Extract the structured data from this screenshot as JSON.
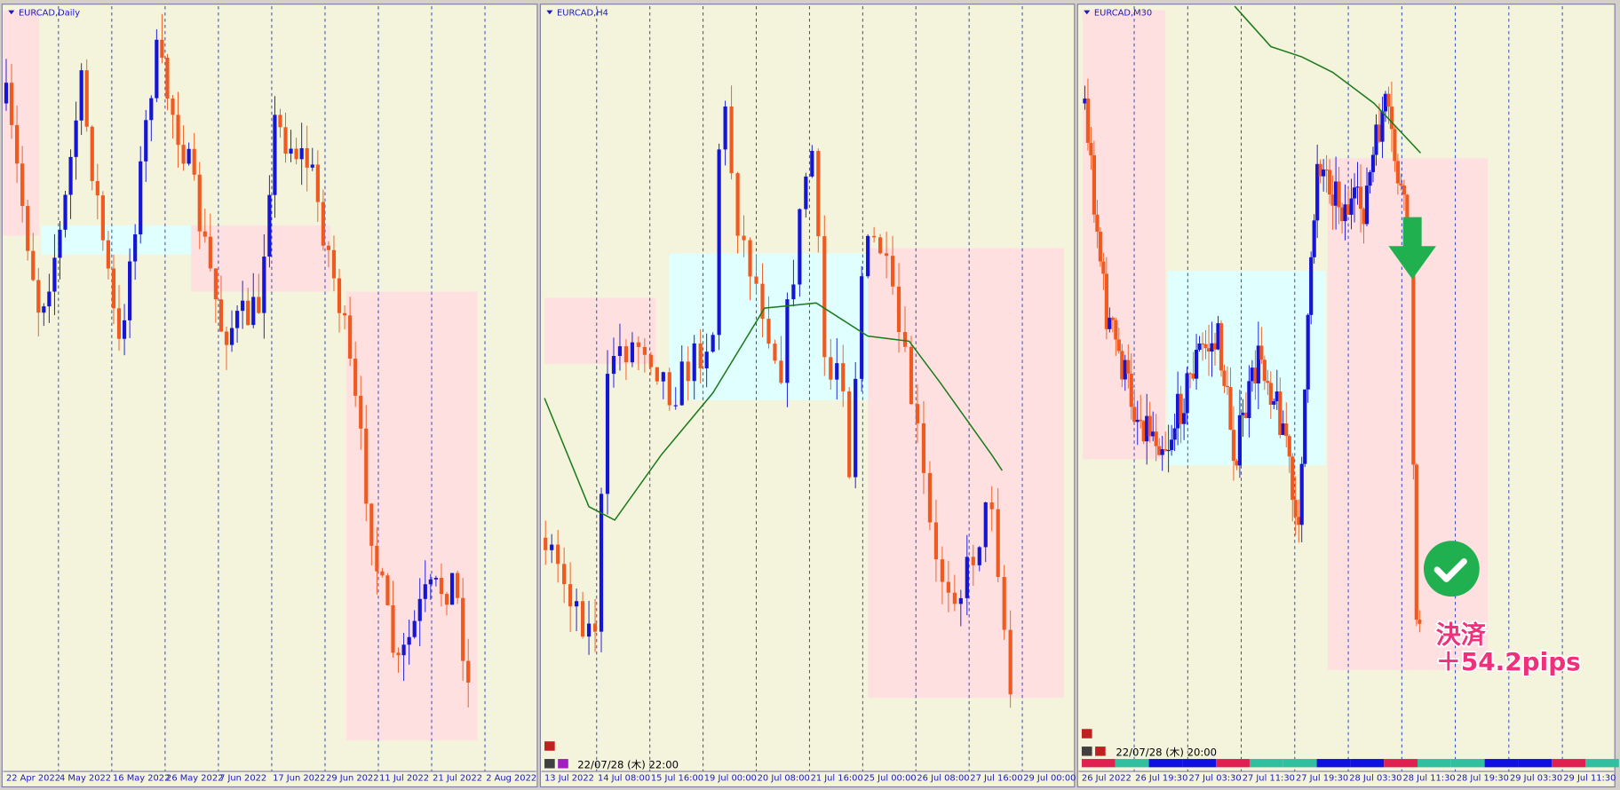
{
  "panels": [
    {
      "title": "EURCAD,Daily",
      "x_labels": [
        "22 Apr 2022",
        "4 May 2022",
        "16 May 2022",
        "26 May 2022",
        "7 Jun 2022",
        "17 Jun 2022",
        "29 Jun 2022",
        "11 Jul 2022",
        "21 Jul 2022",
        "2 Aug 2022"
      ]
    },
    {
      "title": "EURCAD,H4",
      "timestamp": "22/07/28 (木) 22:00",
      "x_labels": [
        "13 Jul 2022",
        "14 Jul 08:00",
        "15 Jul 16:00",
        "19 Jul 00:00",
        "20 Jul 08:00",
        "21 Jul 16:00",
        "25 Jul 00:00",
        "26 Jul 08:00",
        "27 Jul 16:00",
        "29 Jul 00:00"
      ]
    },
    {
      "title": "EURCAD,M30",
      "timestamp": "22/07/28 (木) 20:00",
      "x_labels": [
        "26 Jul 2022",
        "26 Jul 19:30",
        "27 Jul 03:30",
        "27 Jul 11:30",
        "27 Jul 19:30",
        "28 Jul 03:30",
        "28 Jul 11:30",
        "28 Jul 19:30",
        "29 Jul 03:30",
        "29 Jul 11:30"
      ]
    }
  ],
  "annotation": {
    "line1": "決済",
    "line2": "＋54.2pips"
  }
}
